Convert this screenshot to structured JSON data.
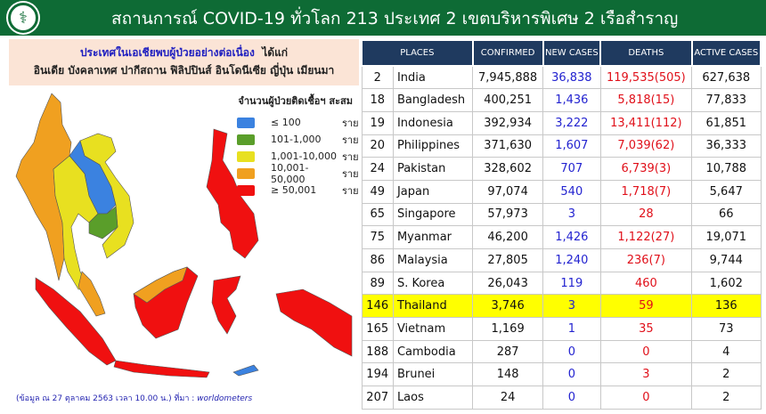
{
  "header": {
    "title": "สถานการณ์ COVID-19 ทั่วโลก 213 ประเทศ 2 เขตบริหารพิเศษ 2 เรือสำราญ",
    "logo": "กรมควบคุมโรค"
  },
  "note": {
    "line1": "ประเทศในเอเชียพบผู้ป่วยอย่างต่อเนื่อง",
    "line1b": "ได้แก่",
    "line2": "อินเดีย บังคลาเทศ ปากีสถาน ฟิลิปปินส์ อินโดนีเซีย ญี่ปุ่น เมียนมา"
  },
  "legend": {
    "title": "จำนวนผู้ป่วยติดเชื้อฯ สะสม",
    "items": [
      {
        "range": "≤ 100",
        "unit": "ราย",
        "color": "#3b82e0"
      },
      {
        "range": "101-1,000",
        "unit": "ราย",
        "color": "#5a9e2a"
      },
      {
        "range": "1,001-10,000",
        "unit": "ราย",
        "color": "#e8e020"
      },
      {
        "range": "10,001-50,000",
        "unit": "ราย",
        "color": "#f0a020"
      },
      {
        "range": "≥ 50,001",
        "unit": "ราย",
        "color": "#f01010"
      }
    ]
  },
  "footer": {
    "text": "(ข้อมูล ณ 27 ตุลาคม 2563 เวลา 10.00 น.) ที่มา : ",
    "source": "worldometers"
  },
  "table": {
    "headers": [
      "PLACES",
      "CONFIRMED",
      "NEW  CASES",
      "DEATHS",
      "ACTIVE CASES"
    ],
    "rows": [
      [
        "2",
        "India",
        "7,945,888",
        "36,838",
        "119,535(505)",
        "627,638"
      ],
      [
        "18",
        "Bangladesh",
        "400,251",
        "1,436",
        "5,818(15)",
        "77,833"
      ],
      [
        "19",
        "Indonesia",
        "392,934",
        "3,222",
        "13,411(112)",
        "61,851"
      ],
      [
        "20",
        "Philippines",
        "371,630",
        "1,607",
        "7,039(62)",
        "36,333"
      ],
      [
        "24",
        "Pakistan",
        "328,602",
        "707",
        "6,739(3)",
        "10,788"
      ],
      [
        "49",
        "Japan",
        "97,074",
        "540",
        "1,718(7)",
        "5,647"
      ],
      [
        "65",
        "Singapore",
        "57,973",
        "3",
        "28",
        "66"
      ],
      [
        "75",
        "Myanmar",
        "46,200",
        "1,426",
        "1,122(27)",
        "19,071"
      ],
      [
        "86",
        "Malaysia",
        "27,805",
        "1,240",
        "236(7)",
        "9,744"
      ],
      [
        "89",
        "S. Korea",
        "26,043",
        "119",
        "460",
        "1,602"
      ],
      [
        "146",
        "Thailand",
        "3,746",
        "3",
        "59",
        "136"
      ],
      [
        "165",
        "Vietnam",
        "1,169",
        "1",
        "35",
        "73"
      ],
      [
        "188",
        "Cambodia",
        "287",
        "0",
        "0",
        "4"
      ],
      [
        "194",
        "Brunei",
        "148",
        "0",
        "3",
        "2"
      ],
      [
        "207",
        "Laos",
        "24",
        "0",
        "0",
        "2"
      ]
    ],
    "highlight": "Thailand"
  }
}
